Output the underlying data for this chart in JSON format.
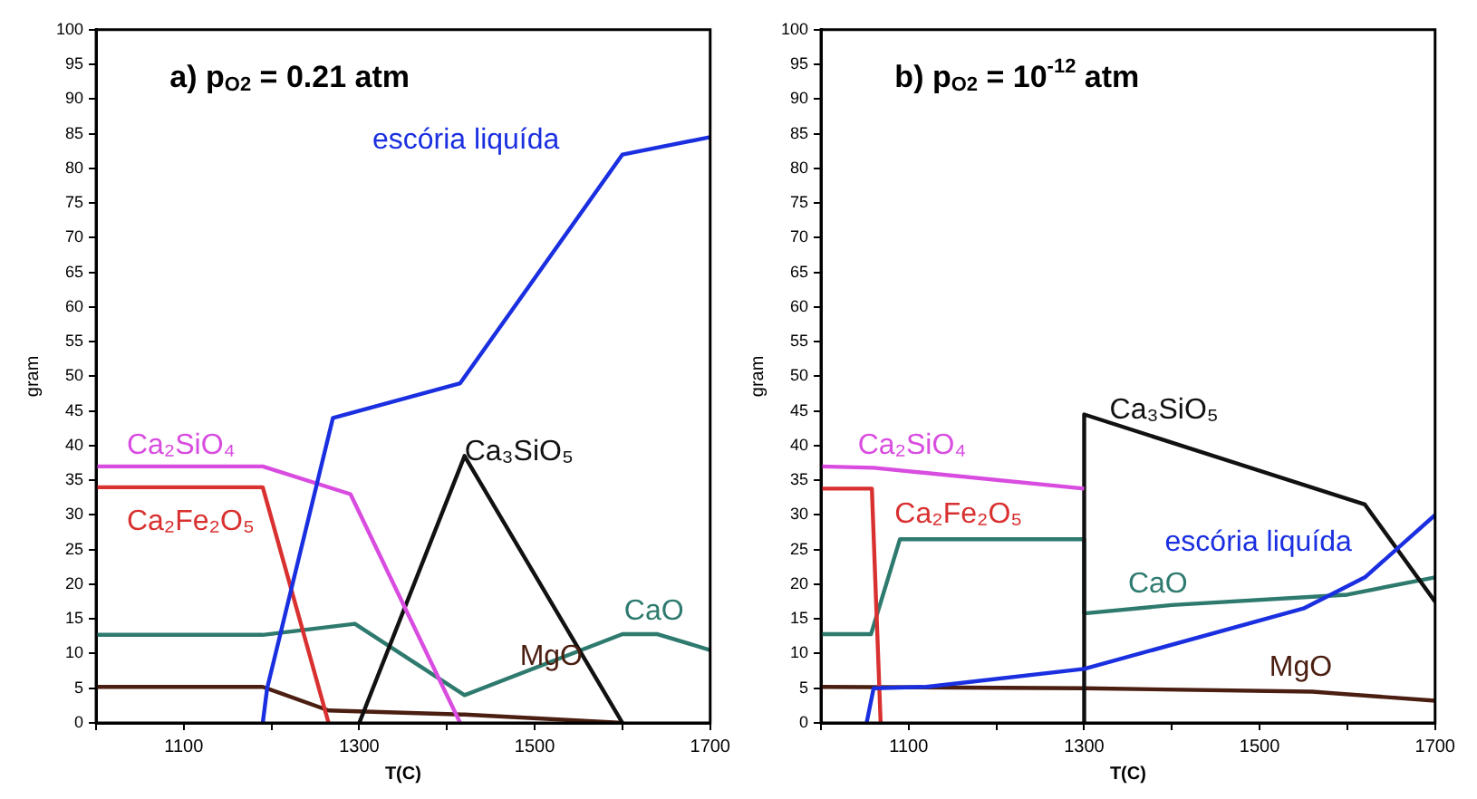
{
  "chart_data": [
    {
      "type": "line",
      "title": "a) p$_{O2}$ = 0.21 atm",
      "xlabel": "T(C)",
      "ylabel": "gram",
      "xlim": [
        1000,
        1700
      ],
      "ylim": [
        0,
        100
      ],
      "xticks": [
        {
          "value": 1000,
          "label": null
        },
        1100,
        {
          "value": 1200,
          "label": null
        },
        1300,
        {
          "value": 1400,
          "label": null
        },
        1500,
        {
          "value": 1600,
          "label": null
        },
        1700
      ],
      "yticks": [
        0,
        5,
        10,
        15,
        20,
        25,
        30,
        35,
        40,
        45,
        50,
        55,
        60,
        65,
        70,
        75,
        80,
        85,
        90,
        95,
        100
      ],
      "grid": false,
      "legend": false,
      "marker": "none",
      "line_style": "solid",
      "series": [
        {
          "name": "escória liquída",
          "color": "#1a2fe0",
          "x": [
            1190,
            1195,
            1270,
            1415,
            1600,
            1700
          ],
          "values": [
            0,
            5,
            44,
            49,
            82,
            84.5
          ]
        },
        {
          "name": "Ca₂SiO₄",
          "color": "#d94ce0",
          "x": [
            1000,
            1190,
            1290,
            1415
          ],
          "values": [
            37,
            37,
            33,
            0
          ]
        },
        {
          "name": "Ca₂Fe₂O₅",
          "color": "#d93030",
          "x": [
            1000,
            1190,
            1265
          ],
          "values": [
            34,
            34,
            0
          ]
        },
        {
          "name": "Ca₃SiO₅",
          "color": "#111111",
          "x": [
            1300,
            1420,
            1600
          ],
          "values": [
            0,
            38.5,
            0
          ]
        },
        {
          "name": "CaO",
          "color": "#2e7a6e",
          "x": [
            1000,
            1190,
            1295,
            1420,
            1600,
            1640,
            1700
          ],
          "values": [
            12.7,
            12.7,
            14.3,
            4,
            12.8,
            12.8,
            10.5
          ]
        },
        {
          "name": "MgO",
          "color": "#4a1e10",
          "x": [
            1000,
            1190,
            1265,
            1420,
            1600
          ],
          "values": [
            5.2,
            5.2,
            1.8,
            1.2,
            0
          ]
        }
      ]
    },
    {
      "type": "line",
      "title": "b) p$_{O2}$ = 10$^{-12}$ atm",
      "xlabel": "T(C)",
      "ylabel": "gram",
      "xlim": [
        1000,
        1700
      ],
      "ylim": [
        0,
        100
      ],
      "xticks": [
        {
          "value": 1000,
          "label": null
        },
        1100,
        {
          "value": 1200,
          "label": null
        },
        1300,
        {
          "value": 1400,
          "label": null
        },
        1500,
        {
          "value": 1600,
          "label": null
        },
        1700
      ],
      "yticks": [
        0,
        5,
        10,
        15,
        20,
        25,
        30,
        35,
        40,
        45,
        50,
        55,
        60,
        65,
        70,
        75,
        80,
        85,
        90,
        95,
        100
      ],
      "grid": false,
      "legend": false,
      "marker": "none",
      "line_style": "solid",
      "series": [
        {
          "name": "escória liquída",
          "color": "#1a2fe0",
          "x": [
            1052,
            1060,
            1120,
            1300,
            1550,
            1620,
            1700
          ],
          "values": [
            0,
            5,
            5.2,
            7.8,
            16.5,
            21,
            30
          ]
        },
        {
          "name": "Ca₂SiO₄",
          "color": "#d94ce0",
          "x": [
            1000,
            1060,
            1300
          ],
          "values": [
            37,
            36.8,
            33.8
          ]
        },
        {
          "name": "Ca₂Fe₂O₅",
          "color": "#d93030",
          "x": [
            1000,
            1058,
            1068
          ],
          "values": [
            33.8,
            33.8,
            0
          ]
        },
        {
          "name": "Ca₃SiO₅",
          "color": "#111111",
          "x": [
            1300,
            1300,
            1620,
            1700
          ],
          "values": [
            0,
            44.5,
            31.5,
            17.5
          ]
        },
        {
          "name": "CaO",
          "color": "#2e7a6e",
          "x": [
            1000,
            1057,
            1090,
            1300,
            1300,
            1400,
            1600,
            1700
          ],
          "values": [
            12.8,
            12.8,
            26.5,
            26.5,
            15.8,
            17,
            18.5,
            21
          ]
        },
        {
          "name": "MgO",
          "color": "#4a1e10",
          "x": [
            1000,
            1300,
            1560,
            1700
          ],
          "values": [
            5.2,
            5,
            4.5,
            3.2
          ]
        }
      ]
    }
  ]
}
